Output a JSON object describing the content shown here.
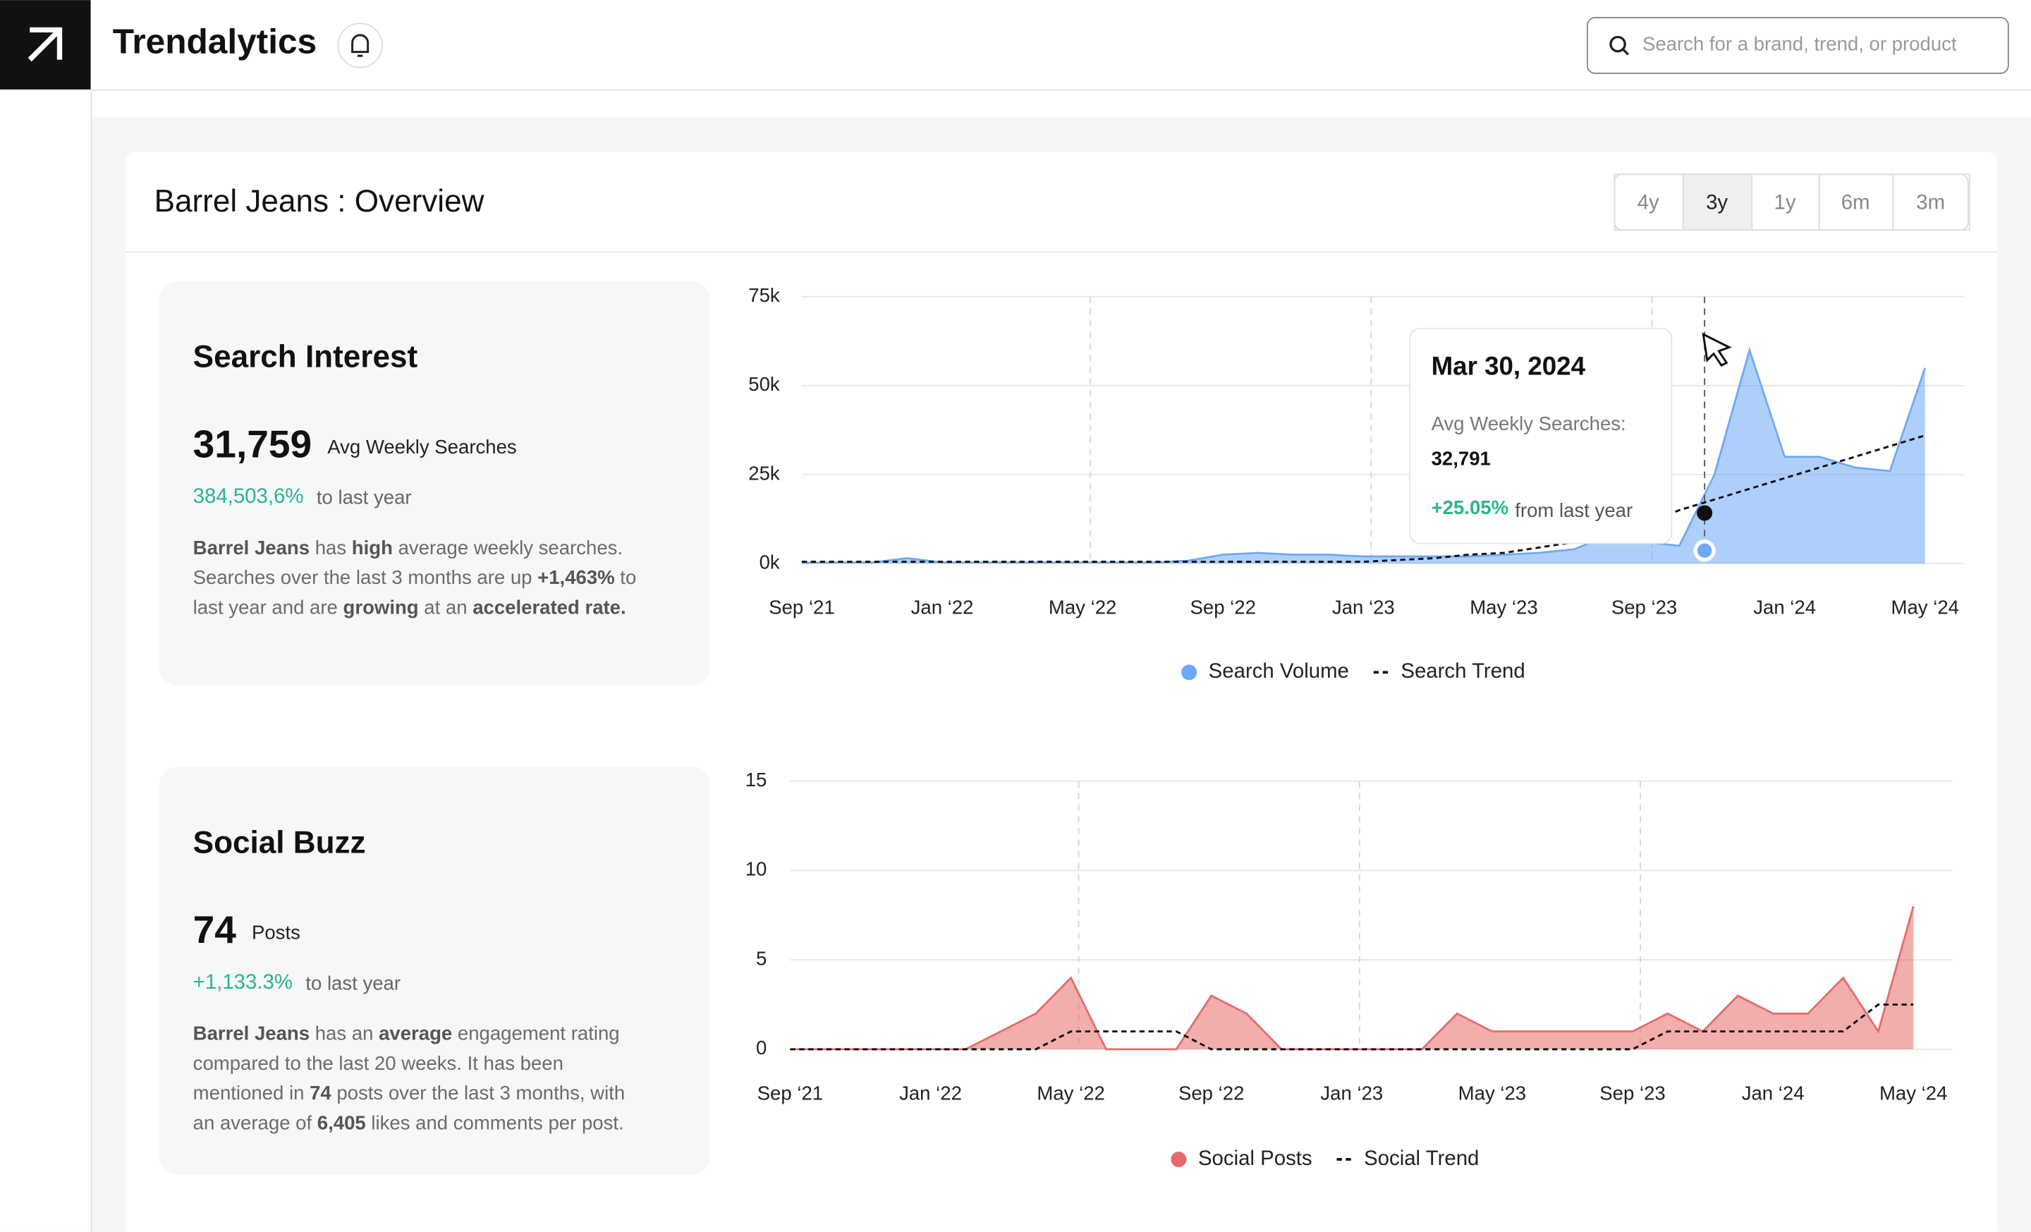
{
  "app": {
    "brand": "Trendalytics",
    "search_placeholder": "Search for a brand, trend, or product"
  },
  "overview": {
    "title": "Barrel Jeans : Overview",
    "ranges": [
      "4y",
      "3y",
      "1y",
      "6m",
      "3m"
    ],
    "selected_range": "3y"
  },
  "panels": [
    {
      "title": "Search Interest",
      "value": "31,759",
      "value_label": "Avg Weekly Searches",
      "change": "384,503,6%",
      "change_label": "to last year",
      "description": [
        [
          {
            "text": "Barrel Jeans",
            "bold": true
          },
          {
            "text": " has "
          },
          {
            "text": "high",
            "bold": true
          },
          {
            "text": " average weekly searches."
          }
        ],
        [
          {
            "text": "Searches over the last 3 months are up "
          },
          {
            "text": "+1,463%",
            "bold": true
          },
          {
            "text": " to"
          }
        ],
        [
          {
            "text": "last year and are "
          },
          {
            "text": "growing",
            "bold": true
          },
          {
            "text": " at an "
          },
          {
            "text": "accelerated rate.",
            "bold": true
          }
        ]
      ]
    },
    {
      "title": "Social Buzz",
      "value": "74",
      "value_label": "Posts",
      "change": "+1,133.3%",
      "change_label": "to last year",
      "description": [
        [
          {
            "text": "Barrel Jeans",
            "bold": true
          },
          {
            "text": " has an "
          },
          {
            "text": "average",
            "bold": true
          },
          {
            "text": " engagement rating"
          }
        ],
        [
          {
            "text": "compared to the last 20 weeks. It has been"
          }
        ],
        [
          {
            "text": "mentioned in "
          },
          {
            "text": "74",
            "bold": true
          },
          {
            "text": " posts over the last 3 months, with"
          }
        ],
        [
          {
            "text": "an average of "
          },
          {
            "text": "6,405",
            "bold": true
          },
          {
            "text": " likes and comments per post."
          }
        ]
      ]
    }
  ],
  "tooltip": {
    "date": "Mar 30, 2024",
    "label": "Avg Weekly Searches:",
    "value": "32,791",
    "change": "+25.05%",
    "change_text": "from last year"
  },
  "chart_data": [
    {
      "type": "area",
      "categories": [
        "Sep ‘21",
        null,
        null,
        null,
        "Jan ‘22",
        null,
        null,
        null,
        "May ‘22",
        null,
        null,
        null,
        "Sep ‘22",
        null,
        null,
        null,
        "Jan ‘23",
        null,
        null,
        null,
        "May ‘23",
        null,
        null,
        null,
        "Sep ‘23",
        null,
        null,
        null,
        "Jan ‘24",
        null,
        null,
        null,
        "May ‘24"
      ],
      "series": [
        {
          "name": "Search Volume",
          "color": "#6ea8f7",
          "style": "area",
          "values": [
            200,
            300,
            300,
            1500,
            300,
            300,
            300,
            300,
            300,
            300,
            300,
            800,
            2500,
            3000,
            2500,
            2500,
            2000,
            2000,
            2000,
            2000,
            2500,
            3000,
            4000,
            8000,
            6000,
            5000,
            25000,
            60000,
            30000,
            30000,
            27000,
            26000,
            55000
          ]
        },
        {
          "name": "Search Trend",
          "color": "#111111",
          "style": "dashed",
          "values": [
            500,
            500,
            500,
            500,
            500,
            500,
            500,
            500,
            500,
            500,
            500,
            500,
            500,
            500,
            500,
            500,
            500,
            1000,
            1500,
            2500,
            3000,
            4500,
            6000,
            8000,
            11000,
            15000,
            18000,
            21000,
            24000,
            27000,
            30000,
            33000,
            36000
          ]
        }
      ],
      "ylim": [
        0,
        75000
      ],
      "yticks": [
        {
          "value": 0,
          "label": "0k"
        },
        {
          "value": 25000,
          "label": "25k"
        },
        {
          "value": 50000,
          "label": "50k"
        },
        {
          "value": 75000,
          "label": "75k"
        }
      ],
      "grid": true
    },
    {
      "type": "area",
      "categories": [
        "Sep ‘21",
        null,
        null,
        null,
        "Jan ‘22",
        null,
        null,
        null,
        "May ‘22",
        null,
        null,
        null,
        "Sep ‘22",
        null,
        null,
        null,
        "Jan ‘23",
        null,
        null,
        null,
        "May ‘23",
        null,
        null,
        null,
        "Sep ‘23",
        null,
        null,
        null,
        "Jan ‘24",
        null,
        null,
        null,
        "May ‘24"
      ],
      "series": [
        {
          "name": "Social Posts",
          "color": "#e86a6a",
          "style": "area",
          "values": [
            0,
            0,
            0,
            0,
            0,
            0,
            1,
            2,
            4,
            0,
            0,
            0,
            3,
            2,
            0,
            0,
            0,
            0,
            0,
            2,
            1,
            1,
            1,
            1,
            1,
            2,
            1,
            3,
            2,
            2,
            4,
            1,
            8
          ]
        },
        {
          "name": "Social Trend",
          "color": "#111111",
          "style": "dashed",
          "values": [
            0,
            0,
            0,
            0,
            0,
            0,
            0,
            0,
            1,
            1,
            1,
            1,
            0,
            0,
            0,
            0,
            0,
            0,
            0,
            0,
            0,
            0,
            0,
            0,
            0,
            1,
            1,
            1,
            1,
            1,
            1,
            2.5,
            2.5
          ]
        }
      ],
      "ylim": [
        0,
        15
      ],
      "yticks": [
        0,
        5,
        10,
        15
      ],
      "grid": true
    }
  ]
}
